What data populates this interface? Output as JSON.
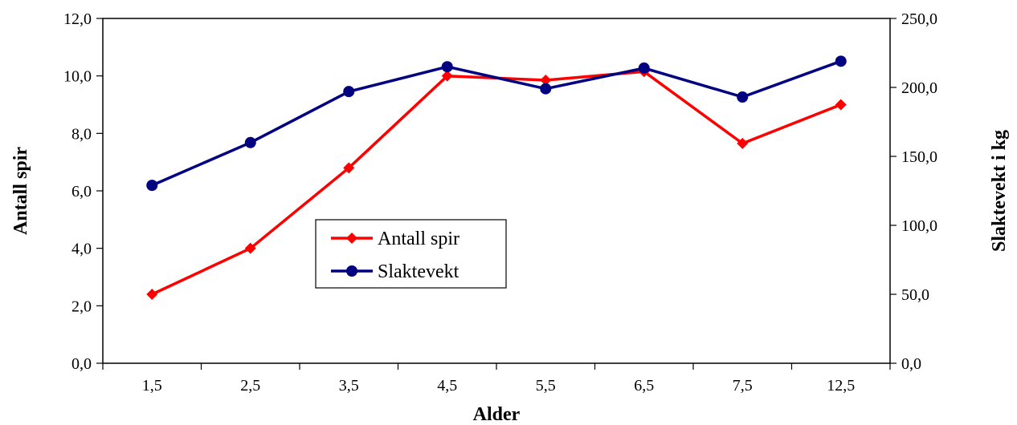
{
  "chart_data": {
    "type": "line",
    "categories": [
      "1,5",
      "2,5",
      "3,5",
      "4,5",
      "5,5",
      "6,5",
      "7,5",
      "12,5"
    ],
    "xlabel": "Alder",
    "ylabel_left": "Antall spir",
    "ylabel_right": "Slaktevekt i kg",
    "ylim_left": [
      0,
      12
    ],
    "ylim_right": [
      0,
      250
    ],
    "yticks_left": [
      "0,0",
      "2,0",
      "4,0",
      "6,0",
      "8,0",
      "10,0",
      "12,0"
    ],
    "yticks_right": [
      "0,0",
      "50,0",
      "100,0",
      "150,0",
      "200,0",
      "250,0"
    ],
    "grid": false,
    "legend_position": "center-left",
    "series": [
      {
        "name": "Antall spir",
        "axis": "left",
        "color": "#ff0000",
        "marker": "diamond",
        "values": [
          2.4,
          4.0,
          6.8,
          10.0,
          9.85,
          10.15,
          7.65,
          9.0
        ]
      },
      {
        "name": "Slaktevekt",
        "axis": "right",
        "color": "#000080",
        "marker": "circle",
        "values": [
          129,
          160,
          197,
          215,
          199,
          214,
          193,
          219
        ]
      }
    ]
  }
}
